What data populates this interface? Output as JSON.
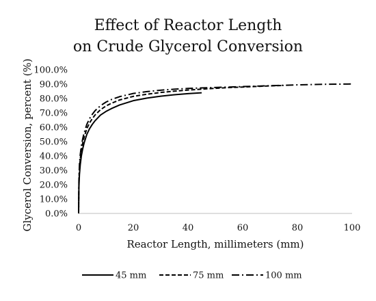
{
  "chart_data": {
    "type": "line",
    "title_lines": [
      "Effect of Reactor Length",
      "on Crude Glycerol Conversion"
    ],
    "xlabel": "Reactor Length, millimeters (mm)",
    "ylabel": "Glycerol Conversion, percent (%)",
    "xlim": [
      0,
      100
    ],
    "ylim": [
      0,
      100
    ],
    "x_ticks": [
      0,
      20,
      40,
      60,
      80,
      100
    ],
    "y_ticks": [
      0,
      10,
      20,
      30,
      40,
      50,
      60,
      70,
      80,
      90,
      100
    ],
    "x_tick_labels": [
      "0",
      "20",
      "40",
      "60",
      "80",
      "100"
    ],
    "y_tick_labels": [
      "0.0%",
      "10.0%",
      "20.0%",
      "30.0%",
      "40.0%",
      "50.0%",
      "60.0%",
      "70.0%",
      "80.0%",
      "90.0%",
      "100.0%"
    ],
    "grid": false,
    "legend_position": "bottom",
    "series": [
      {
        "name": "45 mm",
        "line_style": "solid",
        "x": [
          0,
          0.1,
          0.3,
          0.6,
          1,
          1.5,
          2,
          3,
          4,
          5,
          6,
          8,
          10,
          12,
          15,
          20,
          25,
          30,
          35,
          40,
          45
        ],
        "y": [
          0,
          18,
          27,
          34,
          40,
          45,
          49,
          55,
          59,
          62,
          64.5,
          68.5,
          71,
          73,
          75.5,
          78.5,
          80.3,
          81.6,
          82.6,
          83.4,
          84
        ]
      },
      {
        "name": "75 mm",
        "line_style": "dashed",
        "x": [
          0,
          0.1,
          0.3,
          0.6,
          1,
          1.5,
          2,
          3,
          4,
          5,
          6,
          8,
          10,
          12,
          15,
          20,
          25,
          30,
          35,
          40,
          45,
          50,
          55,
          60,
          65,
          70,
          75
        ],
        "y": [
          0,
          21,
          31,
          38,
          44,
          49,
          53,
          59,
          63,
          66,
          68.5,
          72.2,
          74.8,
          76.7,
          79,
          81.5,
          83,
          84.2,
          85.1,
          85.9,
          86.5,
          87.1,
          87.6,
          88,
          88.4,
          88.8,
          89.1
        ]
      },
      {
        "name": "100 mm",
        "line_style": "dash-dot",
        "x": [
          0,
          0.1,
          0.3,
          0.6,
          1,
          1.5,
          2,
          3,
          4,
          5,
          6,
          8,
          10,
          12,
          15,
          20,
          25,
          30,
          35,
          40,
          45,
          50,
          55,
          60,
          65,
          70,
          75,
          80,
          85,
          90,
          95,
          100
        ],
        "y": [
          0,
          23,
          34,
          41,
          47,
          52,
          56,
          62,
          66,
          69,
          71.5,
          75,
          77.5,
          79.3,
          81.3,
          83.5,
          84.8,
          85.8,
          86.5,
          87,
          87.4,
          87.7,
          88,
          88.3,
          88.6,
          88.9,
          89.2,
          89.5,
          89.7,
          89.9,
          90,
          90.1
        ]
      }
    ]
  }
}
